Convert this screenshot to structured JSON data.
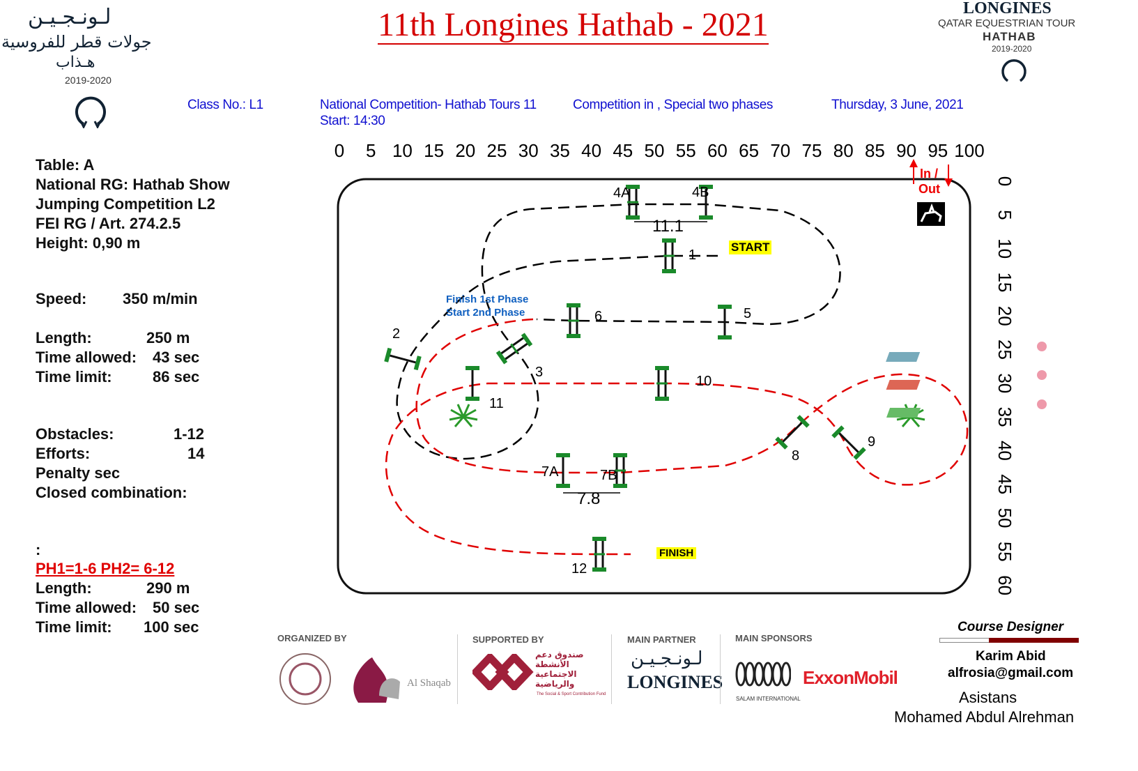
{
  "header": {
    "title": "11th Longines Hathab - 2021",
    "left_logo": {
      "arabic_brand": "لـونـجـيـن",
      "arabic_sub": "جولات قطر للفروسية",
      "arabic_hathab": "هـذاب",
      "years": "2019-2020"
    },
    "right_logo": {
      "brand": "LONGINES",
      "tour": "QATAR EQUESTRIAN TOUR",
      "event": "HATHAB",
      "years": "2019-2020"
    },
    "class_no": "Class No.: L1",
    "competition": "National Competition- Hathab Tours 11",
    "start": "Start: 14:30",
    "type": "Competition in , Special two phases",
    "date": "Thursday, 3 June, 2021"
  },
  "info": {
    "table": "Table: A",
    "rules": [
      "National RG: Hathab Show",
      "Jumping Competition L2",
      "FEI RG / Art. 274.2.5"
    ],
    "height": "Height: 0,90  m",
    "speed_label": "Speed:",
    "speed_value": "350  m/min",
    "length_label": "Length:",
    "length_value": "250    m",
    "time_allowed_label": "Time allowed:",
    "time_allowed_value": "43  sec",
    "time_limit_label": "Time limit:",
    "time_limit_value": "86  sec",
    "obstacles_label": "Obstacles:",
    "obstacles_value": "1-12",
    "efforts_label": "Efforts:",
    "efforts_value": "14",
    "penalty": "Penalty sec",
    "closed": "Closed combination:",
    "colon": ":",
    "phases": "PH1=1-6   PH2= 6-12",
    "ph_length_label": "Length:",
    "ph_length_value": "290    m",
    "ph_time_allowed_label": "Time allowed:",
    "ph_time_allowed_value": "50  sec",
    "ph_time_limit_label": "Time limit:",
    "ph_time_limit_value": "100  sec"
  },
  "course": {
    "top_scale": [
      "0",
      "5",
      "10",
      "15",
      "20",
      "25",
      "30",
      "35",
      "40",
      "45",
      "50",
      "55",
      "60",
      "65",
      "70",
      "75",
      "80",
      "85",
      "90",
      "95",
      "100"
    ],
    "side_scale": [
      "0",
      "5",
      "10",
      "15",
      "20",
      "25",
      "30",
      "35",
      "40",
      "45",
      "50",
      "55",
      "60"
    ],
    "in_out": [
      "In /",
      "Out"
    ],
    "start_label": "START",
    "finish_label": "FINISH",
    "phase_note": [
      "Finish  1st Phase",
      "Start   2nd Phase"
    ],
    "jumps": [
      "1",
      "2",
      "3",
      "4A",
      "4B",
      "5",
      "6",
      "7A",
      "7B",
      "8",
      "9",
      "10",
      "11",
      "12"
    ],
    "distances": [
      "11.1",
      "7.8"
    ],
    "colors": {
      "phase1": "#000000",
      "phase2": "#e00000",
      "fence": "#1a8a2a",
      "start_bg": "#ffff00"
    }
  },
  "footer": {
    "organized": "ORGANIZED BY",
    "supported": "SUPPORTED BY",
    "partner": "MAIN PARTNER",
    "sponsors": "MAIN SPONSORS",
    "al_shaqab": "Al Shaqab",
    "fund_ar": "صندوق دعم الأنشطة الاجتماعية والرياضية",
    "fund_en": "The Social & Sport Contribution Fund",
    "longines_ar": "لـونـجـيـن",
    "longines": "LONGINES",
    "salam": "SALAM INTERNATIONAL",
    "exxon": "ExxonMobil",
    "designer_title": "Course Designer",
    "designer": "Karim Abid",
    "email": "alfrosia@gmail.com",
    "assistant_title": "Asistans",
    "assistant": "Mohamed Abdul Alrehman"
  }
}
